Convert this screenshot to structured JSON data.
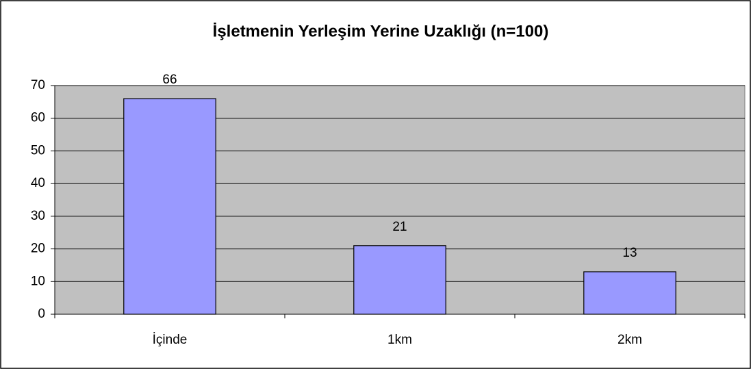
{
  "chart_data": {
    "type": "bar",
    "title": "İşletmenin Yerleşim Yerine Uzaklığı (n=100)",
    "categories": [
      "İçinde",
      "1km",
      "2km"
    ],
    "values": [
      66,
      21,
      13
    ],
    "color": "#9999ff",
    "ylim": [
      0,
      70
    ],
    "yticks": [
      0,
      10,
      20,
      30,
      40,
      50,
      60,
      70
    ],
    "grid": true
  }
}
